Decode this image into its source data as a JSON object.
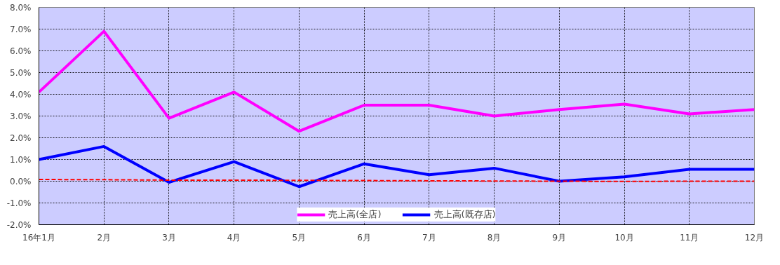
{
  "chart_data": {
    "type": "line",
    "categories": [
      "16年1月",
      "2月",
      "3月",
      "4月",
      "5月",
      "6月",
      "7月",
      "8月",
      "9月",
      "10月",
      "11月",
      "12月"
    ],
    "series": [
      {
        "name": "売上高(全店)",
        "color": "#ff00ff",
        "values": [
          4.1,
          6.9,
          2.9,
          4.1,
          2.3,
          3.5,
          3.5,
          3.0,
          3.3,
          3.55,
          3.1,
          3.3
        ]
      },
      {
        "name": "売上高(既存店)",
        "color": "#0000ff",
        "values": [
          1.0,
          1.6,
          -0.05,
          0.9,
          -0.25,
          0.8,
          0.3,
          0.6,
          0.0,
          0.2,
          0.55,
          0.55
        ]
      },
      {
        "color": "#ff0000",
        "line_style": "dashed",
        "values": [
          0.08,
          0.07,
          0.05,
          0.05,
          0.04,
          0.03,
          0.02,
          0.01,
          0.0,
          -0.01,
          0.0,
          0.0
        ]
      }
    ],
    "ylim": [
      -2,
      8
    ],
    "yticks": [
      {
        "value": -2,
        "label": "-2.0%"
      },
      {
        "value": -1,
        "label": "-1.0%"
      },
      {
        "value": 0,
        "label": "0.0%"
      },
      {
        "value": 1,
        "label": "1.0%"
      },
      {
        "value": 2,
        "label": "2.0%"
      },
      {
        "value": 3,
        "label": "3.0%"
      },
      {
        "value": 4,
        "label": "4.0%"
      },
      {
        "value": 5,
        "label": "5.0%"
      },
      {
        "value": 6,
        "label": "6.0%"
      },
      {
        "value": 7,
        "label": "7.0%"
      },
      {
        "value": 8,
        "label": "8.0%"
      }
    ],
    "grid": true,
    "legend": "bottom",
    "line_style": "solid",
    "marker": "none"
  }
}
